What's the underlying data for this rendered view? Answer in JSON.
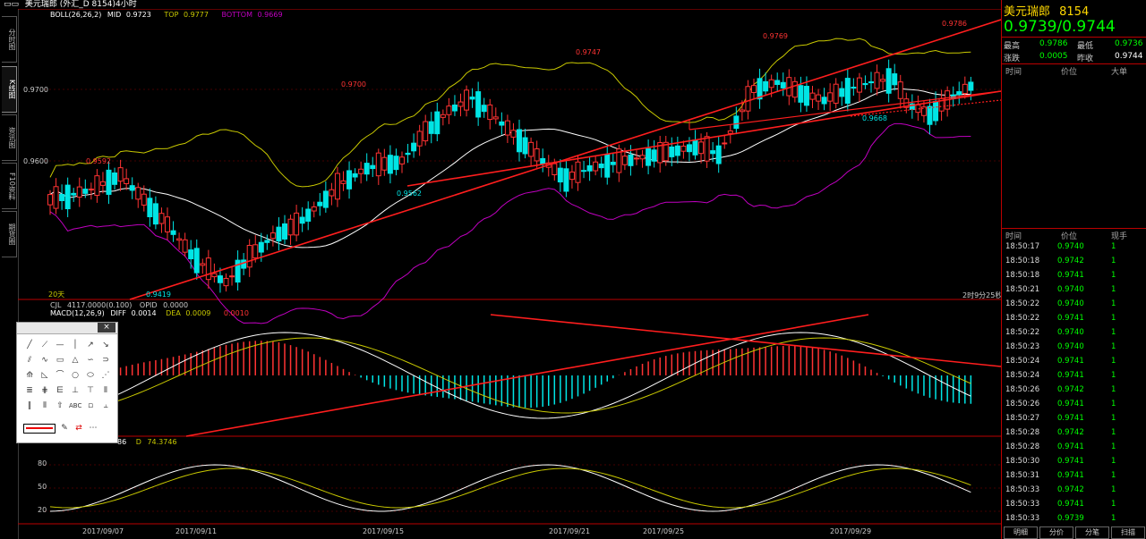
{
  "window": {
    "title": "美元瑞郎 (外汇_D 8154)4小时"
  },
  "left_tabs": [
    "分时图",
    "K线图",
    "资讯图",
    "F10资料",
    "期货圈"
  ],
  "active_tab": "K线图",
  "indicators": {
    "boll": {
      "label": "BOLL(26,26,2)",
      "mid_label": "MID",
      "mid": "0.9723",
      "top_label": "TOP",
      "top": "0.9777",
      "bottom_label": "BOTTOM",
      "bottom": "0.9669"
    },
    "volume": {
      "label": "CJL",
      "value": "4117.0000(0.100)",
      "opid_label": "OPID",
      "opid": "0.0000"
    },
    "macd": {
      "label": "MACD(12,26,9)",
      "diff_label": "DIFF",
      "diff": "0.0014",
      "dea_label": "DEA",
      "dea": "0.0009",
      "macd": "0.0010"
    },
    "kdj": {
      "k_partial": "86",
      "d_label": "D",
      "d": "74.3746"
    }
  },
  "price_axis": [
    "0.9700",
    "0.9600"
  ],
  "osc_axis": [
    "80",
    "50",
    "20"
  ],
  "price_annotations": [
    "0.9592",
    "0.9419",
    "0.9700",
    "0.9562",
    "0.9747",
    "0.9769",
    "0.9668",
    "0.9786"
  ],
  "period_label": "20天",
  "countdown": "2时9分25秒",
  "dates": [
    "2017/09/07",
    "2017/09/11",
    "2017/09/15",
    "2017/09/21",
    "2017/09/25",
    "2017/09/29"
  ],
  "colors": {
    "up": "#ff3333",
    "down": "#00e5e5",
    "mid": "#ffffff",
    "top": "#c8c800",
    "bottom": "#c000c0",
    "trendline": "#ff1e1e",
    "quote": "#00ff00",
    "title": "#ffd800"
  },
  "quote_panel": {
    "symbol": "美元瑞郎",
    "code": "8154",
    "bid_ask": "0.9739/0.9744",
    "high_label": "最高",
    "high": "0.9786",
    "low_label": "最低",
    "low": "0.9736",
    "change_label": "涨跌",
    "change": "0.0005",
    "prev_close_label": "昨收",
    "prev_close": "0.9744",
    "big_orders_headers": [
      "时间",
      "价位",
      "大单"
    ],
    "ticks_headers": [
      "时间",
      "价位",
      "现手"
    ],
    "ticks": [
      {
        "time": "18:50:17",
        "price": "0.9740",
        "qty": "1"
      },
      {
        "time": "18:50:18",
        "price": "0.9742",
        "qty": "1"
      },
      {
        "time": "18:50:18",
        "price": "0.9741",
        "qty": "1"
      },
      {
        "time": "18:50:21",
        "price": "0.9740",
        "qty": "1"
      },
      {
        "time": "18:50:22",
        "price": "0.9740",
        "qty": "1"
      },
      {
        "time": "18:50:22",
        "price": "0.9741",
        "qty": "1"
      },
      {
        "time": "18:50:22",
        "price": "0.9740",
        "qty": "1"
      },
      {
        "time": "18:50:23",
        "price": "0.9740",
        "qty": "1"
      },
      {
        "time": "18:50:24",
        "price": "0.9741",
        "qty": "1"
      },
      {
        "time": "18:50:24",
        "price": "0.9741",
        "qty": "1"
      },
      {
        "time": "18:50:26",
        "price": "0.9742",
        "qty": "1"
      },
      {
        "time": "18:50:26",
        "price": "0.9741",
        "qty": "1"
      },
      {
        "time": "18:50:27",
        "price": "0.9741",
        "qty": "1"
      },
      {
        "time": "18:50:28",
        "price": "0.9742",
        "qty": "1"
      },
      {
        "time": "18:50:28",
        "price": "0.9741",
        "qty": "1"
      },
      {
        "time": "18:50:30",
        "price": "0.9741",
        "qty": "1"
      },
      {
        "time": "18:50:31",
        "price": "0.9741",
        "qty": "1"
      },
      {
        "time": "18:50:33",
        "price": "0.9742",
        "qty": "1"
      },
      {
        "time": "18:50:33",
        "price": "0.9741",
        "qty": "1"
      },
      {
        "time": "18:50:33",
        "price": "0.9739",
        "qty": "1"
      }
    ],
    "bottom_tabs": [
      "明细",
      "分价",
      "分笔",
      "扫描"
    ]
  },
  "toolbox": {
    "close": "×",
    "abc_label": "ABC"
  }
}
